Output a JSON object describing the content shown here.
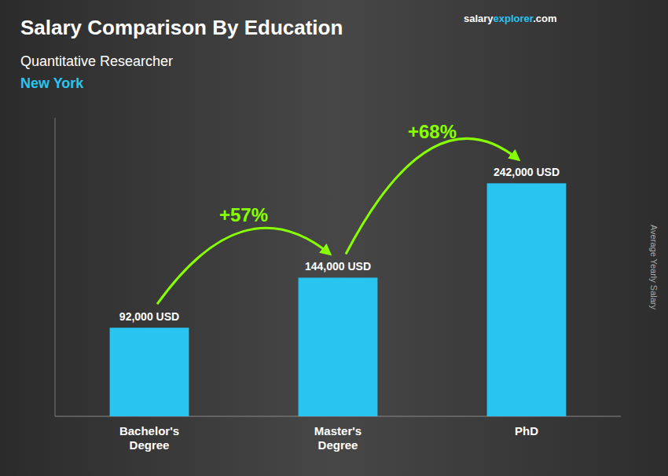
{
  "chart_data": {
    "type": "bar",
    "title": "Salary Comparison By Education",
    "subtitle": "Quantitative Researcher",
    "location": "New York",
    "watermark": [
      "salary",
      "explorer",
      ".com"
    ],
    "y_label": "Average Yearly Salary",
    "categories": [
      "Bachelor's\nDegree",
      "Master's\nDegree",
      "PhD"
    ],
    "values": [
      92000,
      144000,
      242000
    ],
    "value_labels": [
      "92,000 USD",
      "144,000 USD",
      "242,000 USD"
    ],
    "data_labels": true,
    "annotations": [
      "+57%",
      "+68%"
    ],
    "color": "#29C4F0",
    "ylim": [
      0,
      310000
    ],
    "tick_labels": "x",
    "grid": false
  }
}
